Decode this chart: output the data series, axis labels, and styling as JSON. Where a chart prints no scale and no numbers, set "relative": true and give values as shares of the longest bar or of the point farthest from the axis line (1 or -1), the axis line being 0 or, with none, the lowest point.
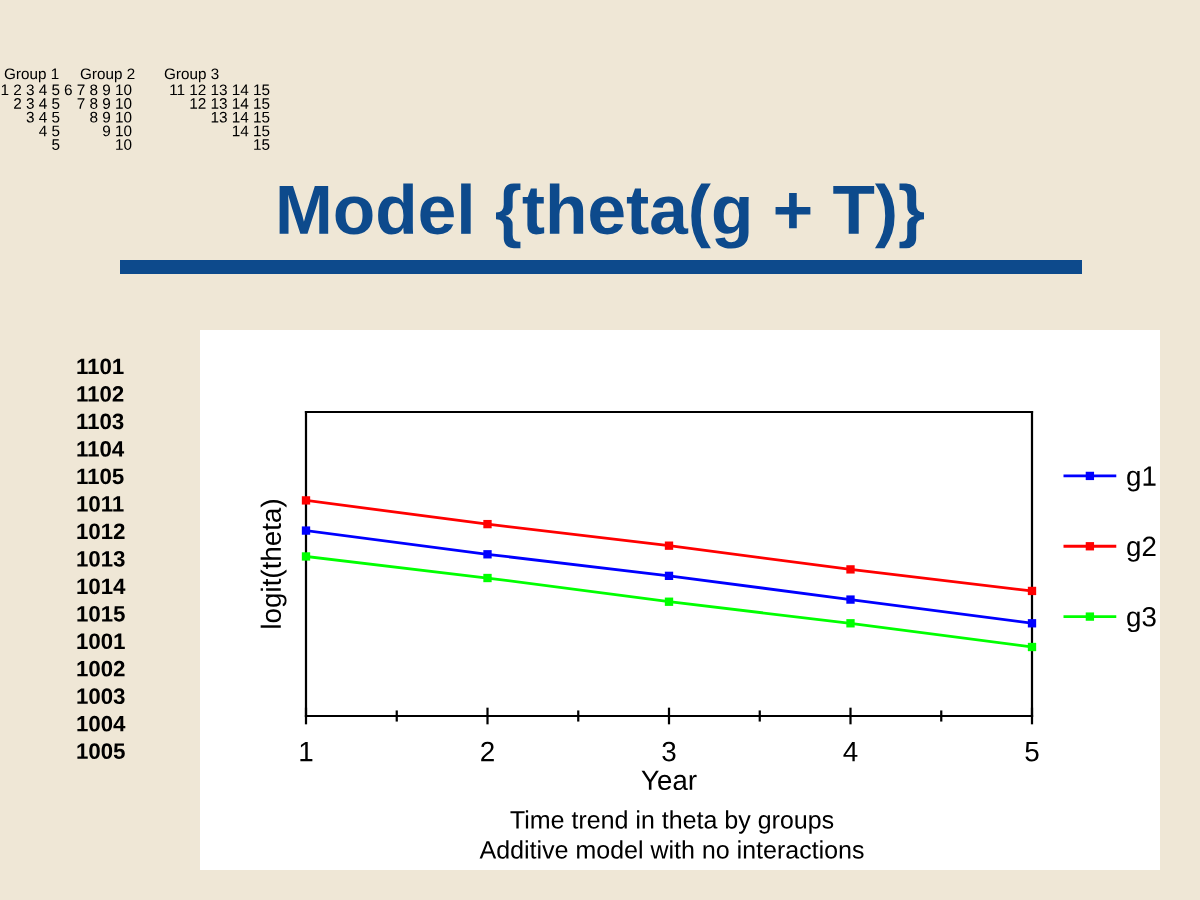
{
  "chart_data": {
    "type": "line",
    "title": "Model {theta(g + T)}",
    "xlabel": "Year",
    "ylabel": "logit(theta)",
    "x": [
      1,
      2,
      3,
      4,
      5
    ],
    "xlim": [
      1,
      5
    ],
    "xticks": [
      1,
      2,
      3,
      4,
      5
    ],
    "relative": true,
    "tick_labels": "x",
    "marker": "square",
    "line_style": "solid",
    "legend": "right",
    "series": [
      {
        "name": "g1",
        "color": "#0000ff",
        "values": [
          0.86,
          0.75,
          0.65,
          0.54,
          0.43
        ]
      },
      {
        "name": "g2",
        "color": "#ff0000",
        "values": [
          1,
          0.89,
          0.79,
          0.68,
          0.58
        ]
      },
      {
        "name": "g3",
        "color": "#00ff00",
        "values": [
          0.74,
          0.64,
          0.53,
          0.43,
          0.32
        ]
      }
    ],
    "annotations": [
      "Group 1",
      "1 2 3 4 5\n2 3 4 5\n3 4 5\n4 5\n5",
      "Group 2",
      "6 7 8 9 10\n7 8 9 10\n8 9 10\n9 10\n10",
      "Group 3",
      "11 12 13 14 15\n12 13 14 15\n13 14 15\n14 15\n15",
      "1101\n1102\n1103\n1104\n1105\n1011\n1012\n1013\n1014\n1015\n1001\n1002\n1003\n1004\n1005",
      "Time trend in theta by groups",
      "Additive model with no interactions"
    ]
  }
}
